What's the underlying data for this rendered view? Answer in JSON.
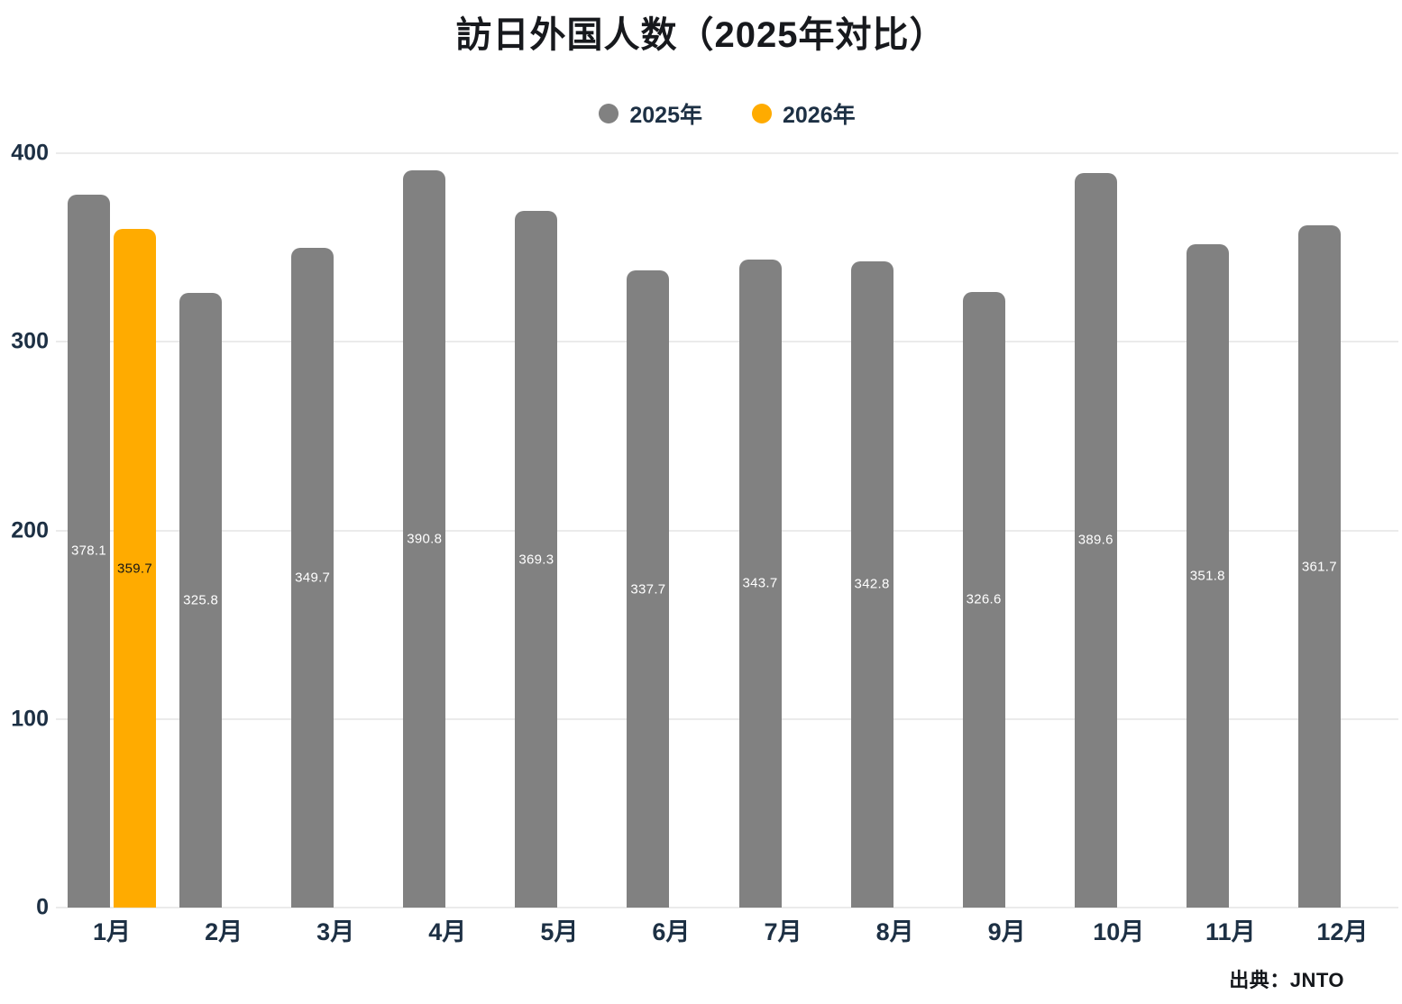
{
  "chart_data": {
    "type": "bar",
    "title": "訪日外国人数（2025年対比）",
    "categories": [
      "1月",
      "2月",
      "3月",
      "4月",
      "5月",
      "6月",
      "7月",
      "8月",
      "9月",
      "10月",
      "11月",
      "12月"
    ],
    "series": [
      {
        "name": "2025年",
        "color": "#818181",
        "label_color": "#ffffff",
        "values": [
          378.1,
          325.8,
          349.7,
          390.8,
          369.3,
          337.7,
          343.7,
          342.8,
          326.6,
          389.6,
          351.8,
          361.7
        ]
      },
      {
        "name": "2026年",
        "color": "#FFAB00",
        "label_color": "#161616",
        "values": [
          359.7,
          null,
          null,
          null,
          null,
          null,
          null,
          null,
          null,
          null,
          null,
          null
        ]
      }
    ],
    "ylim": [
      0,
      400
    ],
    "yticks": [
      0,
      100,
      200,
      300,
      400
    ],
    "grid": true,
    "legend_position": "top",
    "xlabel": "",
    "ylabel": "",
    "source": "出典：JNTO"
  },
  "colors": {
    "title_text": "#17191d",
    "axis_text": "#1d3044",
    "gridline": "#ebebeb",
    "background": "#ffffff"
  }
}
